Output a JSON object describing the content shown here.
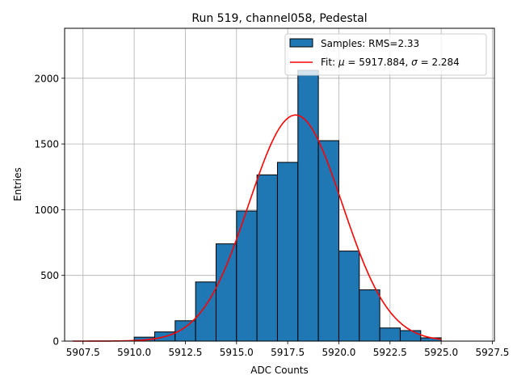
{
  "chart_data": {
    "type": "bar",
    "title": "Run 519, channel058, Pedestal",
    "xlabel": "ADC Counts",
    "ylabel": "Entries",
    "xlim": [
      5906.6,
      5927.6
    ],
    "ylim": [
      0,
      2380
    ],
    "xticks": [
      5907.5,
      5910.0,
      5912.5,
      5915.0,
      5917.5,
      5920.0,
      5922.5,
      5925.0,
      5927.5
    ],
    "xtick_labels": [
      "5907.5",
      "5910.0",
      "5912.5",
      "5915.0",
      "5917.5",
      "5920.0",
      "5922.5",
      "5925.0",
      "5927.5"
    ],
    "yticks": [
      0,
      500,
      1000,
      1500,
      2000
    ],
    "ytick_labels": [
      "0",
      "500",
      "1000",
      "1500",
      "2000"
    ],
    "grid": true,
    "legend_position": "top-right",
    "legend": {
      "samples_label": "Samples: RMS=2.33",
      "fit_label_prefix": "Fit: ",
      "fit_mu_symbol": "μ",
      "fit_mu_text": " = 5917.884, ",
      "fit_sigma_symbol": "σ",
      "fit_sigma_text": " = 2.284"
    },
    "series": [
      {
        "name": "Samples: RMS=2.33",
        "kind": "histogram",
        "color": "#1f77b4",
        "edgecolor": "#000000",
        "bin_edges": [
          5910.0,
          5911.0,
          5912.0,
          5913.0,
          5914.0,
          5915.0,
          5916.0,
          5917.0,
          5918.0,
          5919.0,
          5920.0,
          5921.0,
          5922.0,
          5923.0,
          5924.0,
          5925.0
        ],
        "values": [
          30,
          70,
          155,
          450,
          740,
          990,
          1265,
          1360,
          2060,
          1525,
          685,
          390,
          100,
          80,
          25
        ]
      },
      {
        "name": "Fit: μ = 5917.884, σ = 2.284",
        "kind": "gaussian",
        "color": "#ff0000",
        "mu": 5917.884,
        "sigma": 2.284,
        "amplitude": 1720,
        "x_range": [
          5907.0,
          5925.0
        ]
      }
    ]
  }
}
